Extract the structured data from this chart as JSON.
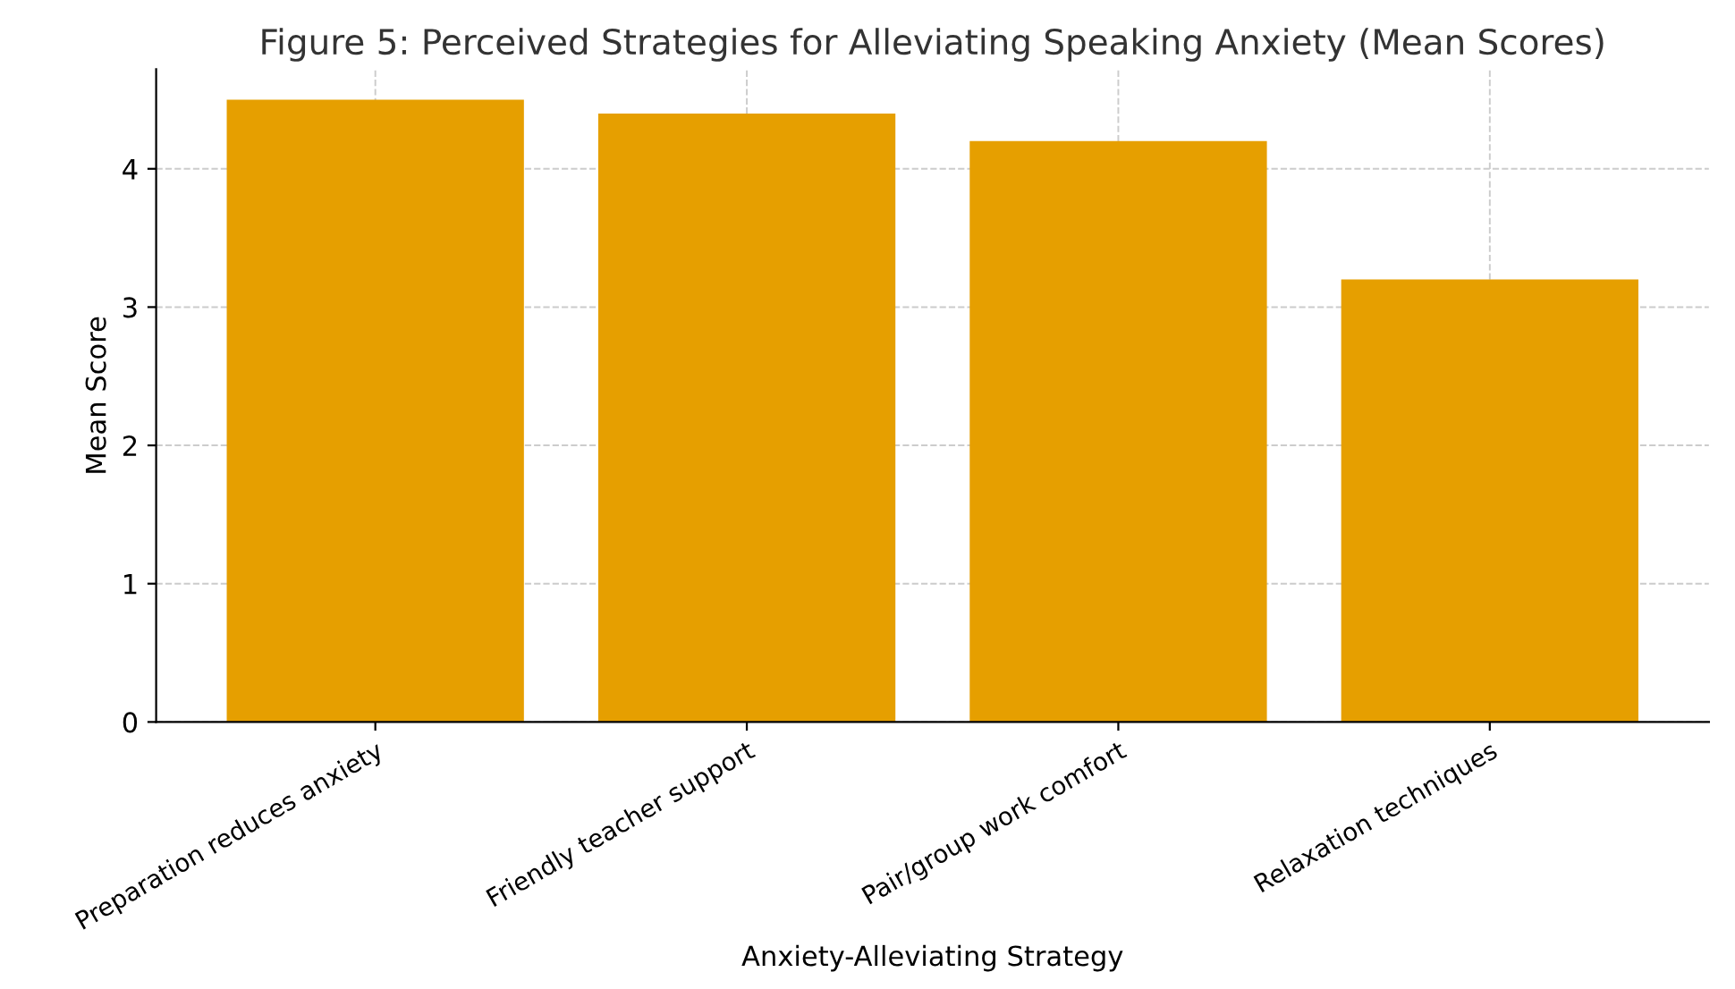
{
  "chart_data": {
    "type": "bar",
    "title": "Figure 5: Perceived Strategies for Alleviating Speaking Anxiety (Mean Scores)",
    "xlabel": "Anxiety-Alleviating Strategy",
    "ylabel": "Mean Score",
    "categories": [
      "Preparation reduces anxiety",
      "Friendly teacher support",
      "Pair/group work comfort",
      "Relaxation techniques"
    ],
    "values": [
      4.5,
      4.4,
      4.2,
      3.2
    ],
    "color": "#e69f00",
    "ylim": [
      0,
      4.72
    ],
    "yticks": [
      0,
      1,
      2,
      3,
      4
    ],
    "grid": true
  }
}
